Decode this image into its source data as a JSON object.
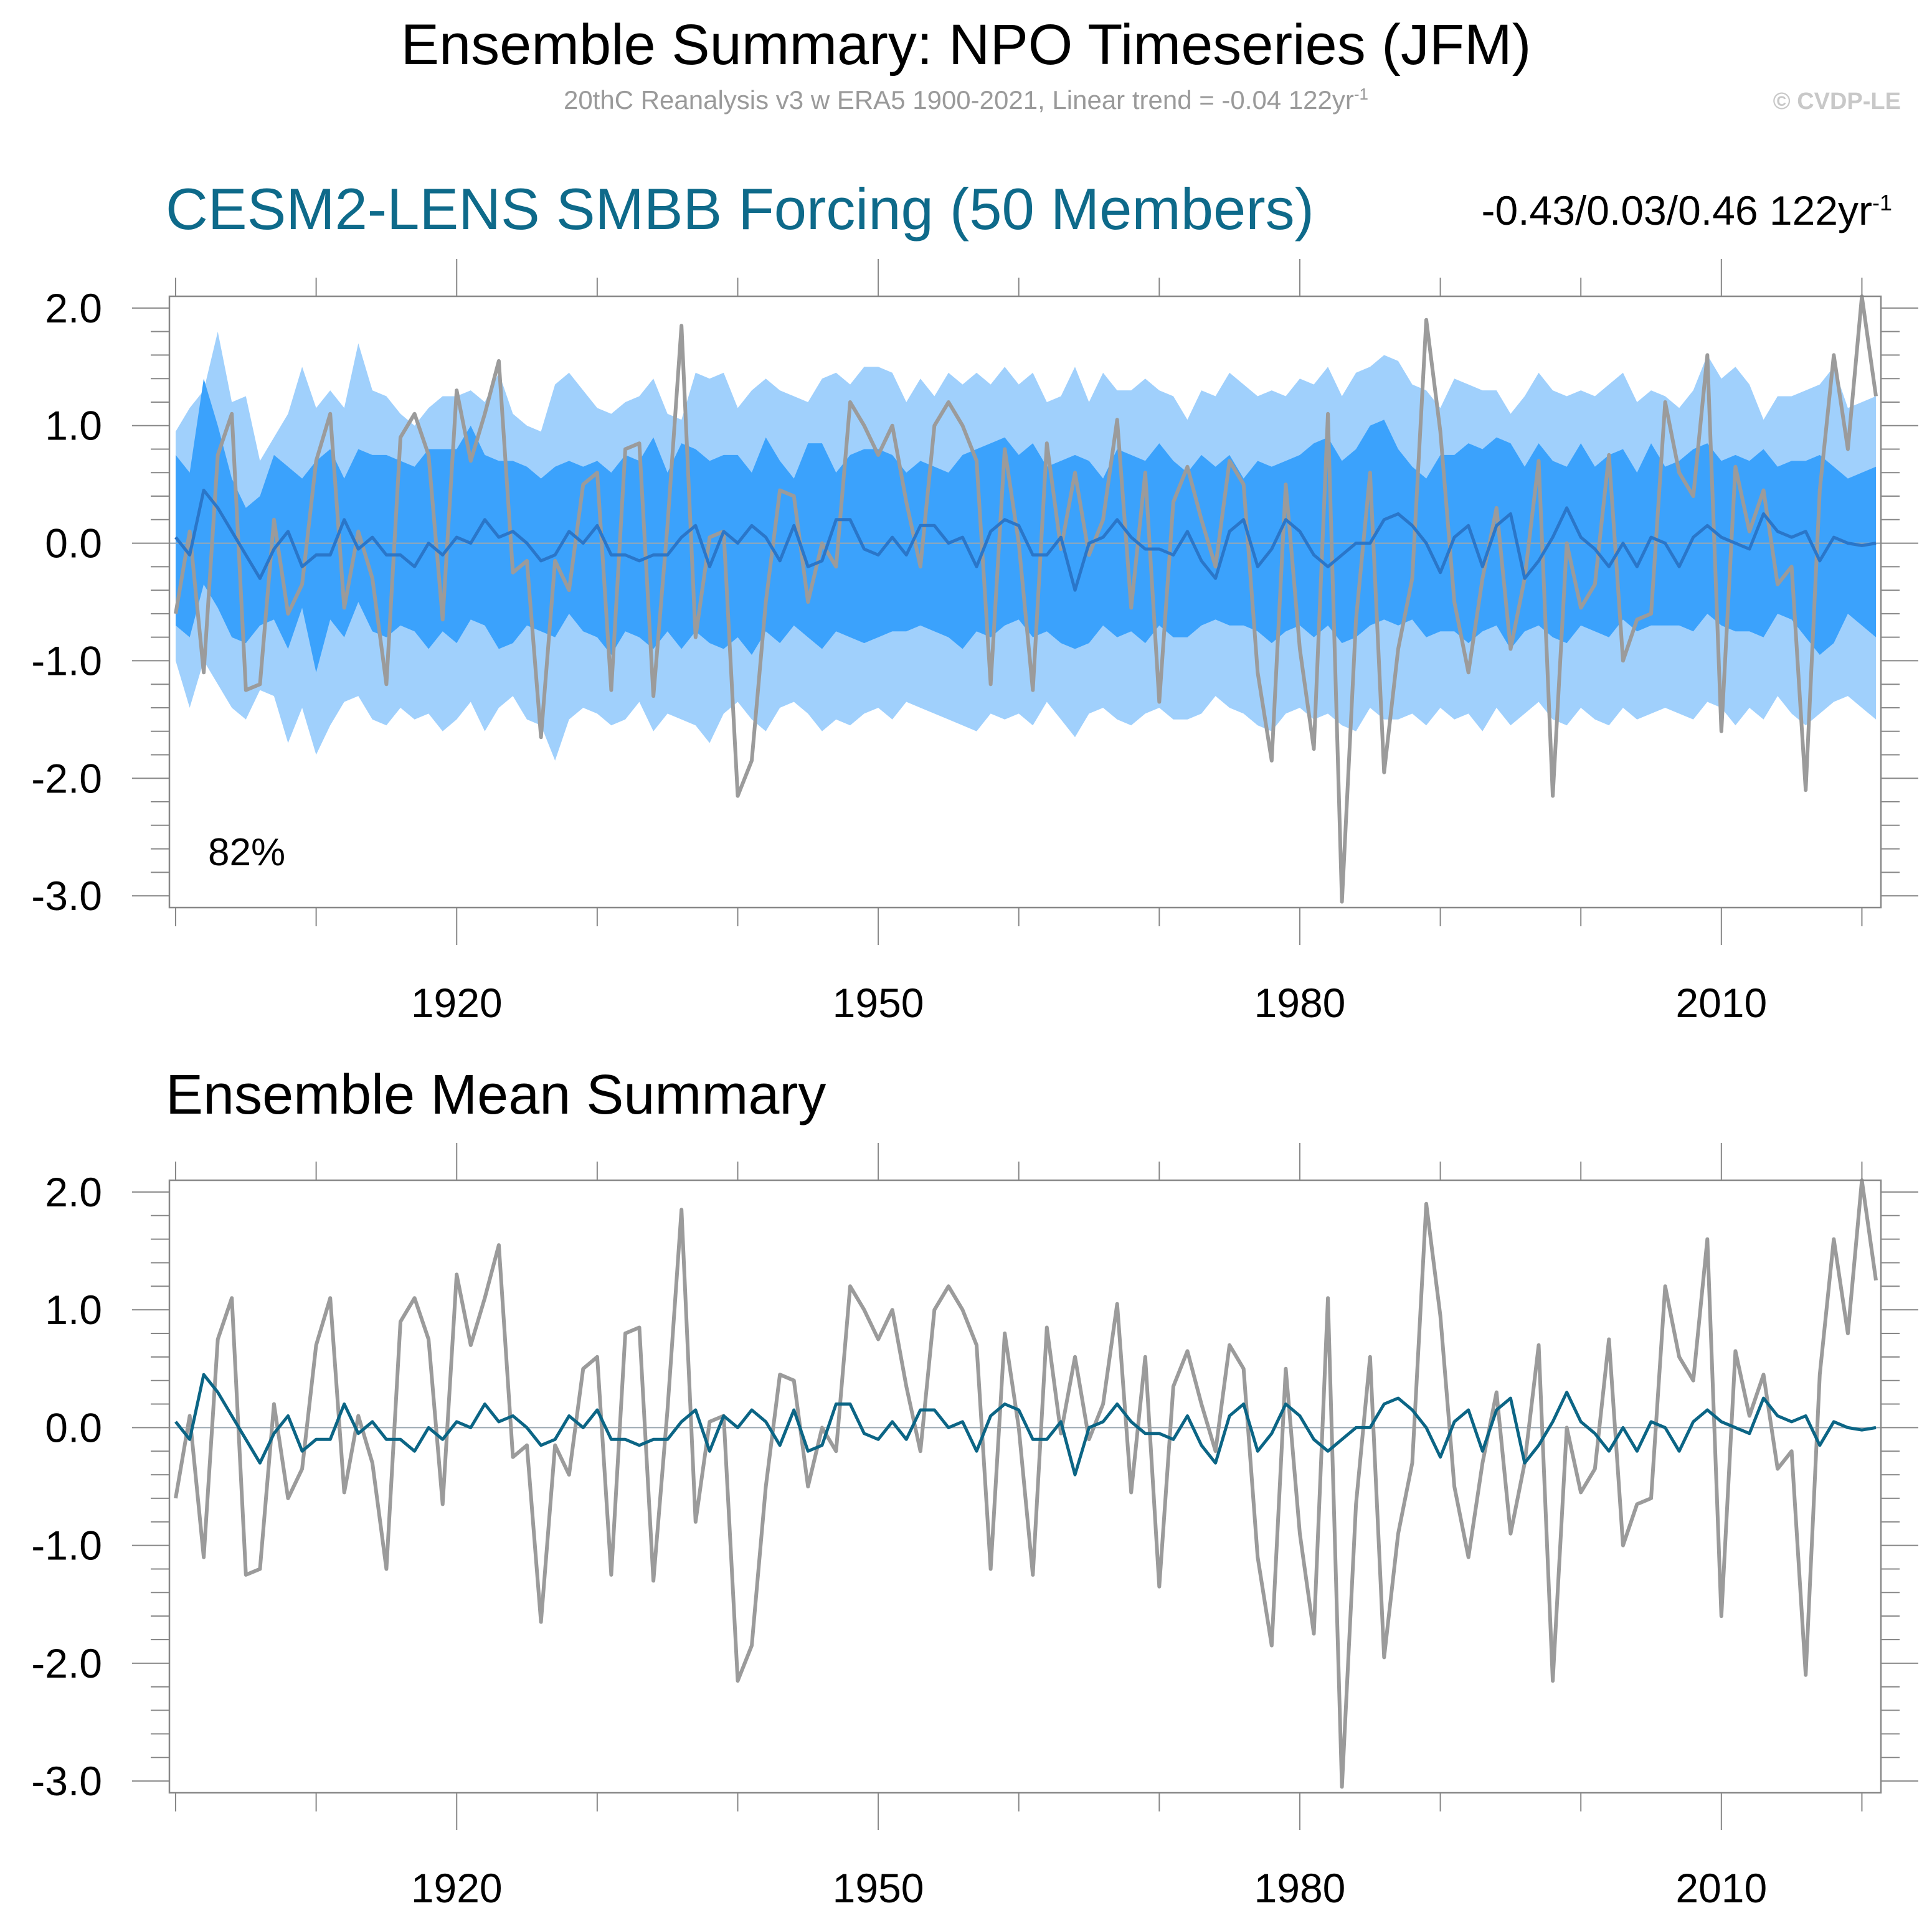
{
  "figure": {
    "title": "Ensemble Summary: NPO Timeseries (JFM)",
    "subtitle": "20thC Reanalysis v3 w ERA5 1900-2021, Linear trend = -0.04 122yr",
    "subtitle_sup": "-1",
    "copyright": "© CVDP-LE"
  },
  "panel1": {
    "title": "CESM2-LENS SMBB Forcing (50 Members)",
    "trend_text": "-0.43/0.03/0.46 122yr",
    "trend_sup": "-1",
    "percent_label": "82%"
  },
  "panel2": {
    "title": "Ensemble Mean Summary"
  },
  "colors": {
    "band_outer": "#a0d0fc",
    "band_inner": "#3ba2fc",
    "ensemble_mean_panel1": "#2a76c9",
    "ensemble_mean_panel2": "#0b6585",
    "observed": "#9b9b9b",
    "frame": "#888888"
  },
  "chart_data": [
    {
      "type": "area",
      "x_start": 1900,
      "x_end": 2021,
      "xlim": [
        1900,
        2021
      ],
      "ylim": [
        -3.1,
        2.1
      ],
      "xticks": [
        1920,
        1950,
        1980,
        2010
      ],
      "yticks": [
        2.0,
        1.0,
        0.0,
        -1.0,
        -2.0,
        -3.0
      ],
      "ytick_labels": [
        "2.0",
        "1.0",
        "0.0",
        "-1.0",
        "-2.0",
        "-3.0"
      ],
      "series": [
        {
          "role": "band_outer_upper",
          "values": [
            0.95,
            1.15,
            1.3,
            1.8,
            1.2,
            1.25,
            0.7,
            0.9,
            1.1,
            1.5,
            1.15,
            1.3,
            1.15,
            1.7,
            1.3,
            1.25,
            1.1,
            1.0,
            1.15,
            1.25,
            1.25,
            1.3,
            1.2,
            1.45,
            1.1,
            1.0,
            0.95,
            1.35,
            1.45,
            1.3,
            1.15,
            1.1,
            1.2,
            1.25,
            1.4,
            1.1,
            1.05,
            1.45,
            1.4,
            1.45,
            1.15,
            1.3,
            1.4,
            1.3,
            1.25,
            1.2,
            1.4,
            1.45,
            1.35,
            1.5,
            1.5,
            1.45,
            1.2,
            1.4,
            1.25,
            1.45,
            1.35,
            1.45,
            1.35,
            1.5,
            1.35,
            1.45,
            1.2,
            1.25,
            1.5,
            1.2,
            1.45,
            1.3,
            1.3,
            1.4,
            1.3,
            1.25,
            1.05,
            1.3,
            1.25,
            1.45,
            1.35,
            1.25,
            1.3,
            1.25,
            1.4,
            1.35,
            1.5,
            1.25,
            1.45,
            1.5,
            1.6,
            1.55,
            1.35,
            1.3,
            1.15,
            1.4,
            1.35,
            1.3,
            1.3,
            1.1,
            1.25,
            1.45,
            1.3,
            1.25,
            1.3,
            1.25,
            1.35,
            1.45,
            1.2,
            1.3,
            1.25,
            1.15,
            1.3,
            1.6,
            1.4,
            1.5,
            1.35,
            1.05,
            1.25,
            1.25,
            1.3,
            1.35,
            1.5,
            1.15,
            1.2,
            1.25
          ]
        },
        {
          "role": "band_inner_upper",
          "values": [
            0.75,
            0.6,
            1.4,
            1.0,
            0.55,
            0.3,
            0.4,
            0.75,
            0.65,
            0.55,
            0.7,
            0.8,
            0.55,
            0.8,
            0.75,
            0.75,
            0.7,
            0.65,
            0.8,
            0.8,
            0.8,
            1.0,
            0.75,
            0.7,
            0.7,
            0.65,
            0.55,
            0.65,
            0.7,
            0.65,
            0.7,
            0.6,
            0.75,
            0.7,
            0.9,
            0.6,
            0.85,
            0.8,
            0.7,
            0.75,
            0.75,
            0.6,
            0.9,
            0.7,
            0.55,
            0.85,
            0.85,
            0.6,
            0.75,
            0.8,
            0.8,
            0.75,
            0.6,
            0.7,
            0.65,
            0.6,
            0.75,
            0.8,
            0.85,
            0.9,
            0.75,
            0.85,
            0.65,
            0.7,
            0.75,
            0.7,
            0.55,
            0.8,
            0.75,
            0.7,
            0.85,
            0.7,
            0.6,
            0.75,
            0.65,
            0.75,
            0.55,
            0.7,
            0.65,
            0.7,
            0.75,
            0.85,
            0.9,
            0.7,
            0.8,
            1.0,
            1.05,
            0.8,
            0.65,
            0.55,
            0.75,
            0.75,
            0.85,
            0.8,
            0.9,
            0.85,
            0.65,
            0.85,
            0.7,
            0.65,
            0.85,
            0.65,
            0.75,
            0.8,
            0.6,
            0.85,
            0.65,
            0.7,
            0.8,
            0.85,
            0.7,
            0.75,
            0.7,
            0.8,
            0.65,
            0.7,
            0.7,
            0.75,
            0.65,
            0.55,
            0.6,
            0.65
          ]
        },
        {
          "role": "band_inner_lower",
          "values": [
            -0.7,
            -0.8,
            -0.35,
            -0.55,
            -0.8,
            -0.85,
            -0.7,
            -0.65,
            -0.9,
            -0.55,
            -1.1,
            -0.65,
            -0.8,
            -0.5,
            -0.75,
            -0.8,
            -0.7,
            -0.75,
            -0.9,
            -0.75,
            -0.85,
            -0.65,
            -0.7,
            -0.9,
            -0.85,
            -0.7,
            -0.75,
            -0.8,
            -0.6,
            -0.75,
            -0.8,
            -0.95,
            -0.75,
            -0.8,
            -0.9,
            -0.75,
            -0.9,
            -0.75,
            -0.85,
            -0.9,
            -0.8,
            -0.95,
            -0.75,
            -0.85,
            -0.7,
            -0.8,
            -0.9,
            -0.75,
            -0.8,
            -0.85,
            -0.8,
            -0.75,
            -0.75,
            -0.7,
            -0.75,
            -0.8,
            -0.9,
            -0.75,
            -0.8,
            -0.7,
            -0.65,
            -0.8,
            -0.75,
            -0.85,
            -0.9,
            -0.85,
            -0.7,
            -0.8,
            -0.75,
            -0.85,
            -0.7,
            -0.8,
            -0.8,
            -0.7,
            -0.65,
            -0.7,
            -0.7,
            -0.75,
            -0.85,
            -0.75,
            -0.7,
            -0.8,
            -0.7,
            -0.85,
            -0.8,
            -0.7,
            -0.65,
            -0.7,
            -0.65,
            -0.8,
            -0.75,
            -0.75,
            -0.85,
            -0.75,
            -0.7,
            -0.9,
            -0.75,
            -0.7,
            -0.8,
            -0.85,
            -0.7,
            -0.75,
            -0.8,
            -0.65,
            -0.75,
            -0.7,
            -0.7,
            -0.7,
            -0.75,
            -0.6,
            -0.7,
            -0.75,
            -0.75,
            -0.8,
            -0.6,
            -0.65,
            -0.8,
            -0.95,
            -0.85,
            -0.6,
            -0.7,
            -0.8
          ]
        },
        {
          "role": "band_outer_lower",
          "values": [
            -1.0,
            -1.4,
            -1.0,
            -1.2,
            -1.4,
            -1.5,
            -1.25,
            -1.3,
            -1.7,
            -1.4,
            -1.8,
            -1.55,
            -1.35,
            -1.3,
            -1.5,
            -1.55,
            -1.4,
            -1.5,
            -1.45,
            -1.6,
            -1.5,
            -1.35,
            -1.6,
            -1.4,
            -1.3,
            -1.5,
            -1.55,
            -1.85,
            -1.5,
            -1.4,
            -1.45,
            -1.55,
            -1.5,
            -1.35,
            -1.6,
            -1.45,
            -1.5,
            -1.55,
            -1.7,
            -1.45,
            -1.35,
            -1.5,
            -1.6,
            -1.4,
            -1.35,
            -1.45,
            -1.6,
            -1.5,
            -1.55,
            -1.45,
            -1.4,
            -1.5,
            -1.35,
            -1.4,
            -1.45,
            -1.5,
            -1.55,
            -1.6,
            -1.45,
            -1.5,
            -1.45,
            -1.55,
            -1.35,
            -1.5,
            -1.65,
            -1.45,
            -1.4,
            -1.5,
            -1.55,
            -1.45,
            -1.4,
            -1.5,
            -1.5,
            -1.45,
            -1.3,
            -1.4,
            -1.45,
            -1.55,
            -1.6,
            -1.45,
            -1.4,
            -1.5,
            -1.45,
            -1.55,
            -1.6,
            -1.4,
            -1.5,
            -1.5,
            -1.45,
            -1.55,
            -1.4,
            -1.5,
            -1.45,
            -1.6,
            -1.4,
            -1.55,
            -1.45,
            -1.35,
            -1.5,
            -1.55,
            -1.4,
            -1.5,
            -1.55,
            -1.4,
            -1.5,
            -1.45,
            -1.4,
            -1.45,
            -1.5,
            -1.35,
            -1.4,
            -1.55,
            -1.4,
            -1.5,
            -1.3,
            -1.45,
            -1.55,
            -1.45,
            -1.35,
            -1.3,
            -1.4,
            -1.5
          ]
        },
        {
          "role": "ensemble_mean",
          "values": [
            0.05,
            -0.1,
            0.45,
            0.3,
            0.1,
            -0.1,
            -0.3,
            -0.05,
            0.1,
            -0.2,
            -0.1,
            -0.1,
            0.2,
            -0.05,
            0.05,
            -0.1,
            -0.1,
            -0.2,
            0.0,
            -0.1,
            0.05,
            0.0,
            0.2,
            0.05,
            0.1,
            0.0,
            -0.15,
            -0.1,
            0.1,
            0.0,
            0.15,
            -0.1,
            -0.1,
            -0.15,
            -0.1,
            -0.1,
            0.05,
            0.15,
            -0.2,
            0.1,
            0.0,
            0.15,
            0.05,
            -0.15,
            0.15,
            -0.2,
            -0.15,
            0.2,
            0.2,
            -0.05,
            -0.1,
            0.05,
            -0.1,
            0.15,
            0.15,
            0.0,
            0.05,
            -0.2,
            0.1,
            0.2,
            0.15,
            -0.1,
            -0.1,
            0.05,
            -0.4,
            0.0,
            0.05,
            0.2,
            0.05,
            -0.05,
            -0.05,
            -0.1,
            0.1,
            -0.15,
            -0.3,
            0.1,
            0.2,
            -0.2,
            -0.05,
            0.2,
            0.1,
            -0.1,
            -0.2,
            -0.1,
            0.0,
            0.0,
            0.2,
            0.25,
            0.15,
            0.0,
            -0.25,
            0.05,
            0.15,
            -0.2,
            0.15,
            0.25,
            -0.3,
            -0.15,
            0.05,
            0.3,
            0.05,
            -0.05,
            -0.2,
            0.0,
            -0.2,
            0.05,
            0.0,
            -0.2,
            0.05,
            0.15,
            0.05,
            0.0,
            -0.05,
            0.25,
            0.1,
            0.05,
            0.1,
            -0.15,
            0.05,
            0.0,
            -0.02,
            0.0
          ]
        },
        {
          "role": "observed",
          "values": [
            -0.6,
            0.1,
            -1.1,
            0.75,
            1.1,
            -1.25,
            -1.2,
            0.2,
            -0.6,
            -0.35,
            0.7,
            1.1,
            -0.55,
            0.1,
            -0.3,
            -1.2,
            0.9,
            1.1,
            0.75,
            -0.65,
            1.3,
            0.7,
            1.1,
            1.55,
            -0.25,
            -0.15,
            -1.65,
            -0.15,
            -0.4,
            0.5,
            0.6,
            -1.25,
            0.8,
            0.85,
            -1.3,
            0.15,
            1.85,
            -0.8,
            0.05,
            0.1,
            -2.15,
            -1.85,
            -0.5,
            0.45,
            0.4,
            -0.5,
            0.0,
            -0.2,
            1.2,
            1.0,
            0.75,
            1.0,
            0.35,
            -0.2,
            1.0,
            1.2,
            1.0,
            0.7,
            -1.2,
            0.8,
            0.0,
            -1.25,
            0.85,
            -0.05,
            0.6,
            -0.1,
            0.2,
            1.05,
            -0.55,
            0.6,
            -1.35,
            0.35,
            0.65,
            0.2,
            -0.2,
            0.7,
            0.5,
            -1.1,
            -1.85,
            0.5,
            -0.9,
            -1.75,
            1.1,
            -3.05,
            -0.65,
            0.6,
            -1.95,
            -0.9,
            -0.3,
            1.9,
            0.95,
            -0.5,
            -1.1,
            -0.3,
            0.3,
            -0.9,
            -0.3,
            0.7,
            -2.15,
            0.0,
            -0.55,
            -0.35,
            0.75,
            -1.0,
            -0.65,
            -0.6,
            1.2,
            0.6,
            0.4,
            1.6,
            -1.6,
            0.65,
            0.1,
            0.45,
            -0.35,
            -0.2,
            -2.1,
            0.45,
            1.6,
            0.8,
            2.1,
            1.25
          ]
        }
      ]
    },
    {
      "type": "line",
      "x_start": 1900,
      "x_end": 2021,
      "xlim": [
        1900,
        2021
      ],
      "ylim": [
        -3.1,
        2.1
      ],
      "xticks": [
        1920,
        1950,
        1980,
        2010
      ],
      "yticks": [
        2.0,
        1.0,
        0.0,
        -1.0,
        -2.0,
        -3.0
      ],
      "ytick_labels": [
        "2.0",
        "1.0",
        "0.0",
        "-1.0",
        "-2.0",
        "-3.0"
      ],
      "series": [
        {
          "role": "observed",
          "values": "same-as-panel1"
        },
        {
          "role": "ensemble_mean",
          "values": "same-as-panel1"
        }
      ]
    }
  ]
}
